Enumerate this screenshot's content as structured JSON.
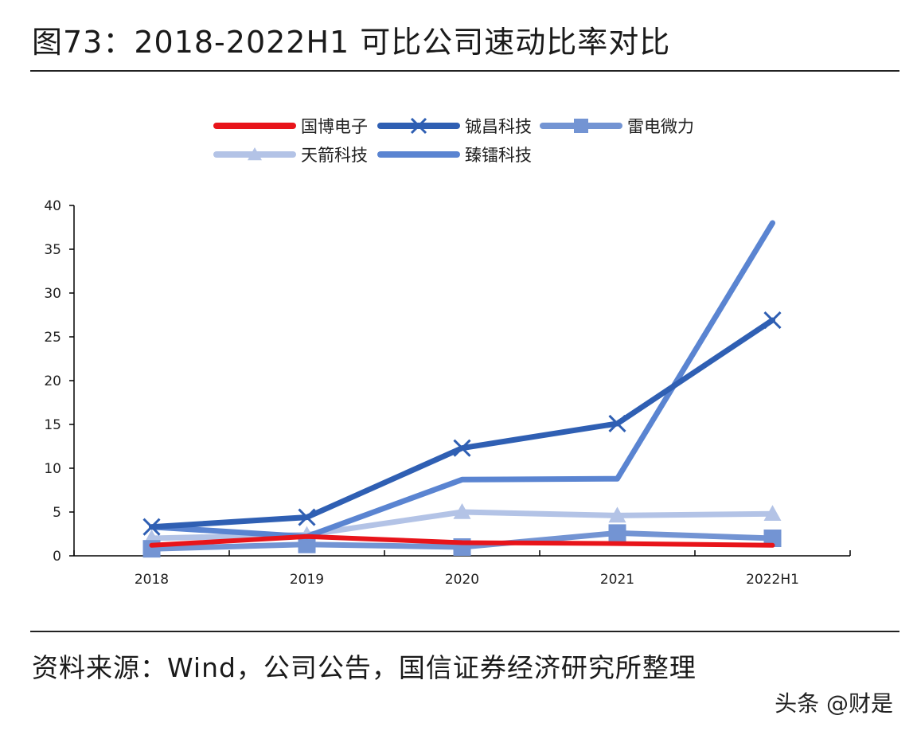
{
  "figure": {
    "title": "图73：2018-2022H1 可比公司速动比率对比",
    "source": "资料来源：Wind，公司公告，国信证券经济研究所整理",
    "watermark": "头条 @财是"
  },
  "chart_data": {
    "type": "line",
    "categories": [
      "2018",
      "2019",
      "2020",
      "2021",
      "2022H1"
    ],
    "ylim": [
      0,
      40
    ],
    "yticks": [
      0,
      5,
      10,
      15,
      20,
      25,
      30,
      35,
      40
    ],
    "grid": false,
    "legend_placement": "top-center",
    "series": [
      {
        "name": "国博电子",
        "values": [
          1.2,
          2.2,
          1.5,
          1.4,
          1.2
        ],
        "color": "#e8141a",
        "marker": "none"
      },
      {
        "name": "铖昌科技",
        "values": [
          3.3,
          4.4,
          12.3,
          15.1,
          26.9
        ],
        "color": "#2f5fb3",
        "marker": "x"
      },
      {
        "name": "雷电微力",
        "values": [
          0.8,
          1.3,
          1.0,
          2.6,
          2.0
        ],
        "color": "#7394d3",
        "marker": "square"
      },
      {
        "name": "天箭科技",
        "values": [
          2.0,
          2.4,
          5.0,
          4.6,
          4.8
        ],
        "color": "#b3c3e6",
        "marker": "triangle"
      },
      {
        "name": "臻镭科技",
        "values": [
          3.3,
          2.2,
          8.7,
          8.8,
          38.0
        ],
        "color": "#5a84d1",
        "marker": "none"
      }
    ]
  }
}
